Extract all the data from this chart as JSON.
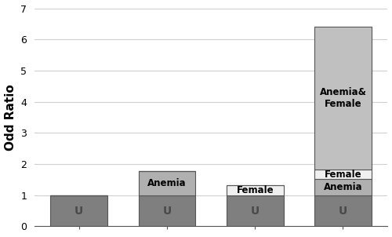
{
  "categories": [
    "",
    "",
    "",
    ""
  ],
  "segments": [
    {
      "label": "U",
      "values": [
        1.0,
        1.0,
        1.0,
        1.0
      ],
      "color": "#7f7f7f",
      "text_labels": [
        "U",
        "U",
        "U",
        "U"
      ],
      "text_color": "#4a4a4a"
    },
    {
      "label": "Anemia",
      "values": [
        0.0,
        0.78,
        0.0,
        0.52
      ],
      "color": "#b0b0b0",
      "text_labels": [
        "",
        "Anemia",
        "",
        "Anemia"
      ],
      "text_color": "#000000"
    },
    {
      "label": "Female",
      "values": [
        0.0,
        0.0,
        0.33,
        0.3
      ],
      "color": "#f0f0f0",
      "text_labels": [
        "",
        "",
        "Female",
        "Female"
      ],
      "text_color": "#000000"
    },
    {
      "label": "Anemia&\nFemale",
      "values": [
        0.0,
        0.0,
        0.0,
        4.58
      ],
      "color": "#c0c0c0",
      "text_labels": [
        "",
        "",
        "",
        "Anemia&\nFemale"
      ],
      "text_color": "#000000"
    }
  ],
  "ylabel": "Odd Ratio",
  "ylim": [
    0,
    7
  ],
  "yticks": [
    0,
    1,
    2,
    3,
    4,
    5,
    6,
    7
  ],
  "background_color": "#ffffff",
  "grid_color": "#d0d0d0",
  "bar_width": 0.65,
  "bar_edge_color": "#555555",
  "segment_label_fontsize": 8.5,
  "u_label_fontsize": 10,
  "ylabel_fontsize": 11
}
